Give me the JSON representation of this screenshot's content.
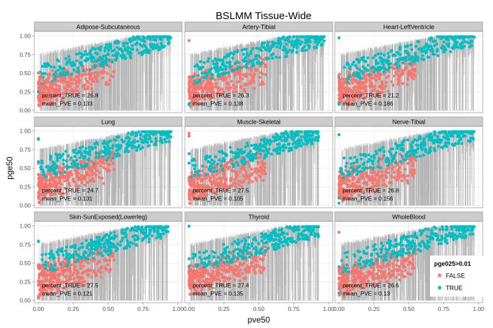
{
  "chart_data": {
    "type": "scatter",
    "title": "BSLMM Tissue-Wide",
    "xlabel": "pve50",
    "ylabel": "pge50",
    "xlim": [
      -0.03,
      1.03
    ],
    "ylim": [
      -0.03,
      1.06
    ],
    "x_ticks": [
      "0.00",
      "0.25",
      "0.50",
      "0.75",
      "1.00"
    ],
    "y_ticks": [
      "0.00",
      "0.25",
      "0.50",
      "0.75",
      "1.00"
    ],
    "x_tick_values": [
      0,
      0.25,
      0.5,
      0.75,
      1.0
    ],
    "y_tick_values": [
      0,
      0.25,
      0.5,
      0.75,
      1.0
    ],
    "grid": true,
    "legend": {
      "title": "pge025>0.01",
      "position": "bottom-right",
      "entries": [
        {
          "label": "FALSE",
          "color": "#F8766D"
        },
        {
          "label": "TRUE",
          "color": "#00BFC4"
        }
      ]
    },
    "colors": {
      "FALSE": "#F8766D",
      "TRUE": "#00BFC4",
      "error_bars": "#b3b3b3",
      "strip": "#cccccc",
      "panel_border": "#7f7f7f",
      "grid": "#ebebeb"
    },
    "panels": [
      {
        "tissue": "Adipose-Subcutaneous",
        "percent_TRUE": "percent_TRUE = 26.8",
        "mean_PVE": "mean_PVE = 0.133",
        "max_x": 0.95
      },
      {
        "tissue": "Artery-Tibial",
        "percent_TRUE": "percent_TRUE = 26.3",
        "mean_PVE": "mean_PVE = 0.138",
        "max_x": 0.97
      },
      {
        "tissue": "Heart-LeftVentricle",
        "percent_TRUE": "percent_TRUE = 21.2",
        "mean_PVE": "mean_PVE = 0.186",
        "max_x": 0.97
      },
      {
        "tissue": "Lung",
        "percent_TRUE": "percent_TRUE = 24.7",
        "mean_PVE": "mean_PVE = 0.131",
        "max_x": 0.95
      },
      {
        "tissue": "Muscle-Skeletal",
        "percent_TRUE": "percent_TRUE = 27.5",
        "mean_PVE": "mean_PVE = 0.105",
        "max_x": 0.93
      },
      {
        "tissue": "Nerve-Tibial",
        "percent_TRUE": "percent_TRUE = 26.8",
        "mean_PVE": "mean_PVE = 0.156",
        "max_x": 0.97
      },
      {
        "tissue": "Skin-SunExposed(Lowerleg)",
        "percent_TRUE": "percent_TRUE = 27.5",
        "mean_PVE": "mean_PVE = 0.121",
        "max_x": 0.93
      },
      {
        "tissue": "Thyroid",
        "percent_TRUE": "percent_TRUE = 27.4",
        "mean_PVE": "mean_PVE = 0.135",
        "max_x": 0.93
      },
      {
        "tissue": "WholeBlood",
        "percent_TRUE": "percent_TRUE = 26.6",
        "mean_PVE": "mean_PVE = 0.13",
        "max_x": 0.97
      }
    ]
  }
}
